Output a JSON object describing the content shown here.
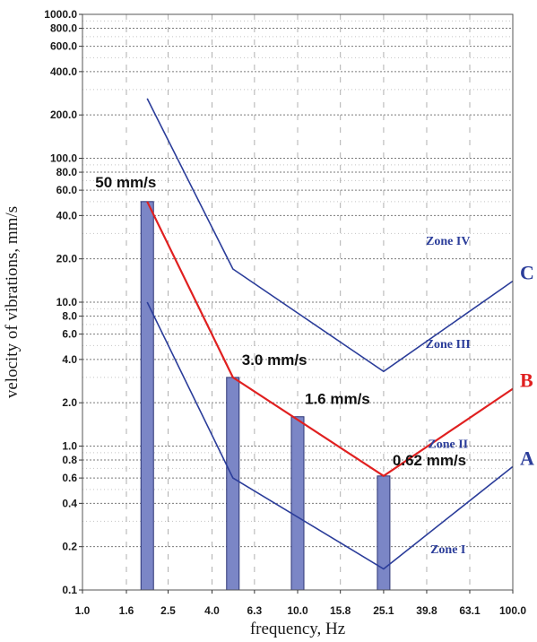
{
  "chart_data": {
    "type": "line",
    "xlabel": "frequency, Hz",
    "ylabel": "velocity of vibrations, mm/s",
    "x_scale": "log",
    "y_scale": "log",
    "xlim": [
      1.0,
      100.0
    ],
    "ylim": [
      0.1,
      1000.0
    ],
    "x_ticks": [
      "1.0",
      "1.6",
      "2.5",
      "4.0",
      "6.3",
      "10.0",
      "15.8",
      "25.1",
      "39.8",
      "63.1",
      "100.0"
    ],
    "y_tick_values": [
      0.1,
      0.2,
      0.4,
      0.6,
      0.8,
      1.0,
      2.0,
      4.0,
      6.0,
      8.0,
      10.0,
      20.0,
      40.0,
      60.0,
      80.0,
      100.0,
      200.0,
      400.0,
      600.0,
      800.0,
      1000.0
    ],
    "y_tick_labels": [
      "0.1",
      "0.2",
      "0.4",
      "0.6",
      "0.8",
      "1.0",
      "2.0",
      "4.0",
      "6.0",
      "8.0",
      "10.0",
      "20.0",
      "40.0",
      "60.0",
      "80.0",
      "100.0",
      "200.0",
      "400.0",
      "600.0",
      "800.0",
      "1000.0"
    ],
    "grid": true,
    "series": [
      {
        "name": "C",
        "color": "#2b3d9a",
        "x": [
          2.0,
          5.0,
          25.1,
          100.0
        ],
        "y": [
          260,
          17,
          3.3,
          14
        ]
      },
      {
        "name": "B",
        "color": "#e02020",
        "x": [
          2.0,
          5.0,
          25.1,
          100.0
        ],
        "y": [
          50,
          3.0,
          0.62,
          2.5
        ]
      },
      {
        "name": "A",
        "color": "#2b3d9a",
        "x": [
          2.0,
          5.0,
          25.1,
          100.0
        ],
        "y": [
          10,
          0.6,
          0.14,
          0.72
        ]
      }
    ],
    "bars": [
      {
        "x": 2.0,
        "value": 50,
        "label": "50 mm/s"
      },
      {
        "x": 5.0,
        "value": 3.0,
        "label": "3.0 mm/s"
      },
      {
        "x": 10.0,
        "value": 1.6,
        "label": "1.6 mm/s"
      },
      {
        "x": 25.1,
        "value": 0.62,
        "label": "0.62 mm/s"
      }
    ],
    "bar_color": "#7b86c6",
    "zones": [
      {
        "label": "Zone IV",
        "x": 50,
        "y": 25
      },
      {
        "label": "Zone III",
        "x": 50,
        "y": 4.8
      },
      {
        "label": "Zone II",
        "x": 50,
        "y": 0.97
      },
      {
        "label": "Zone I",
        "x": 50,
        "y": 0.18
      }
    ]
  }
}
